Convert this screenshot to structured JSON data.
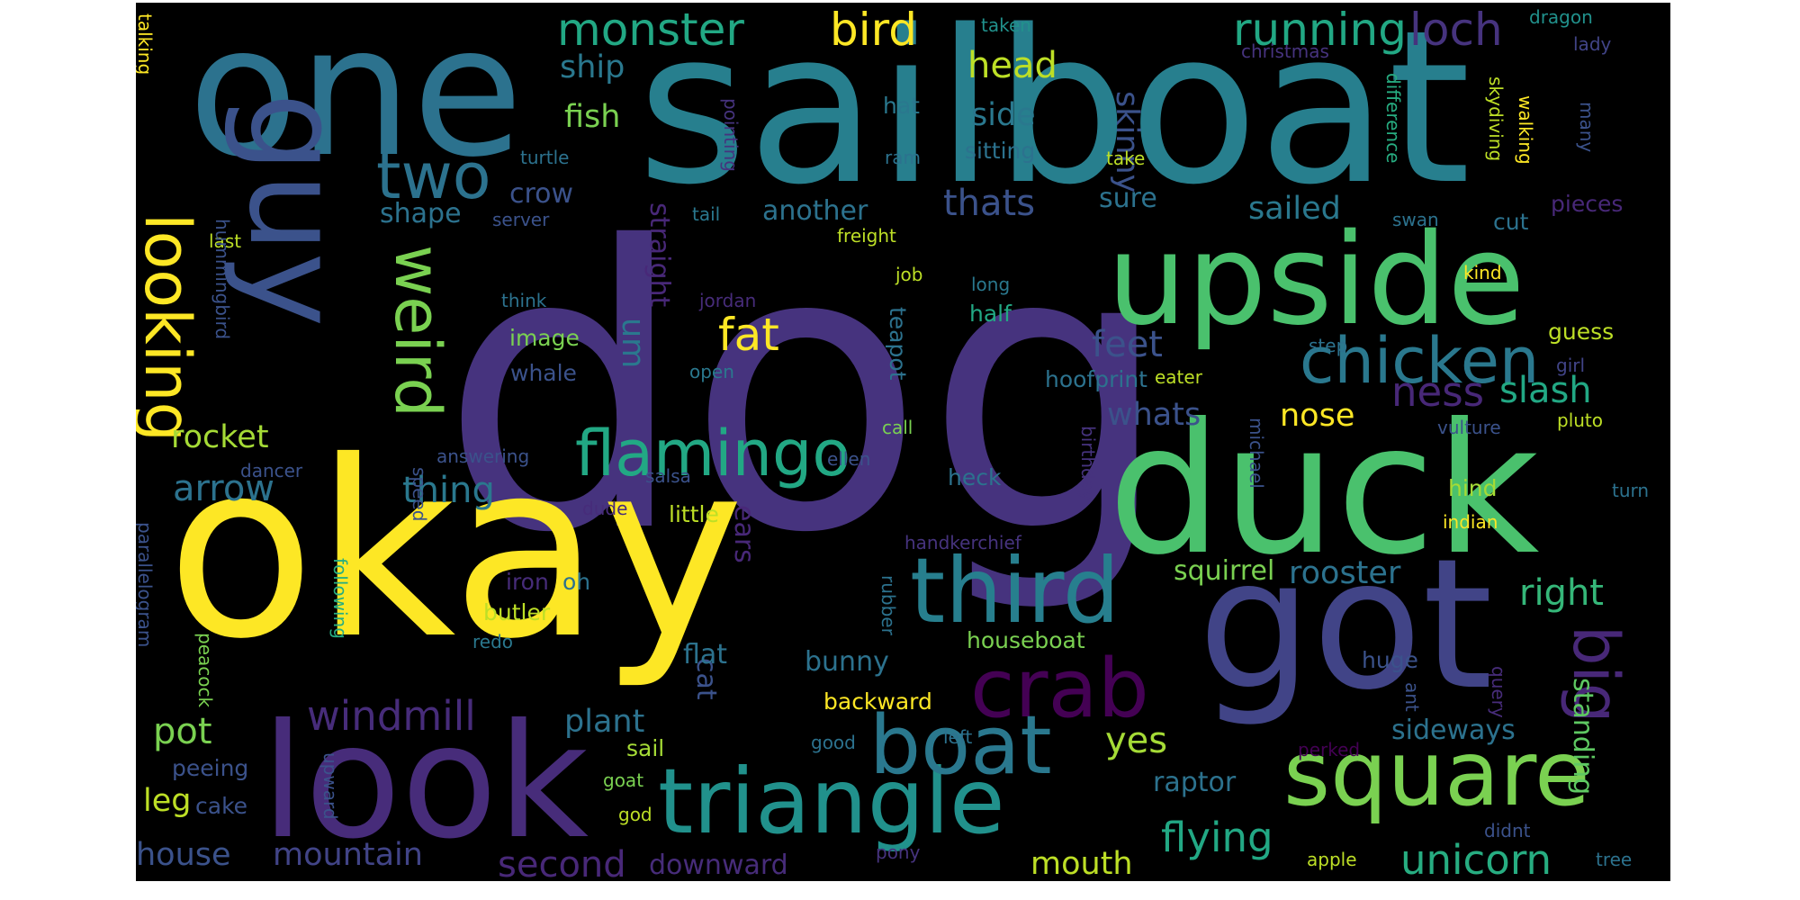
{
  "words": [
    {
      "text": "dog",
      "color": "#46337e"
    },
    {
      "text": "sailboat",
      "color": "#277f8e"
    },
    {
      "text": "okay",
      "color": "#fde725"
    },
    {
      "text": "one",
      "color": "#2c728e"
    },
    {
      "text": "duck",
      "color": "#4ac16d"
    },
    {
      "text": "got",
      "color": "#414487"
    },
    {
      "text": "upside",
      "color": "#4ac16d"
    },
    {
      "text": "look",
      "color": "#472c7a"
    },
    {
      "text": "guy",
      "color": "#3b528b"
    },
    {
      "text": "square",
      "color": "#7ad151"
    },
    {
      "text": "triangle",
      "color": "#21918c"
    },
    {
      "text": "third",
      "color": "#277f8e"
    },
    {
      "text": "crab",
      "color": "#440154"
    },
    {
      "text": "boat",
      "color": "#2a788e"
    },
    {
      "text": "chicken",
      "color": "#2a788e"
    },
    {
      "text": "looking",
      "color": "#fde725"
    },
    {
      "text": "two",
      "color": "#2c728e"
    },
    {
      "text": "weird",
      "color": "#7ad151"
    },
    {
      "text": "flamingo",
      "color": "#22a884"
    },
    {
      "text": "big",
      "color": "#482878"
    },
    {
      "text": "monster",
      "color": "#22a884"
    },
    {
      "text": "bird",
      "color": "#fde725"
    },
    {
      "text": "running",
      "color": "#22a884"
    },
    {
      "text": "loch",
      "color": "#46337e"
    },
    {
      "text": "head",
      "color": "#bddf26"
    },
    {
      "text": "ship",
      "color": "#2a788e"
    },
    {
      "text": "fish",
      "color": "#7ad151"
    },
    {
      "text": "side",
      "color": "#2a788e"
    },
    {
      "text": "skinny",
      "color": "#3b528b"
    },
    {
      "text": "thats",
      "color": "#3b528b"
    },
    {
      "text": "fat",
      "color": "#fde725"
    },
    {
      "text": "windmill",
      "color": "#472c7a"
    },
    {
      "text": "unicorn",
      "color": "#27ad81"
    },
    {
      "text": "flying",
      "color": "#22a884"
    },
    {
      "text": "mouth",
      "color": "#bddf26"
    },
    {
      "text": "second",
      "color": "#482878"
    },
    {
      "text": "house",
      "color": "#3b528b"
    },
    {
      "text": "mountain",
      "color": "#414487"
    },
    {
      "text": "rocket",
      "color": "#a5db36"
    },
    {
      "text": "arrow",
      "color": "#2c728e"
    },
    {
      "text": "thing",
      "color": "#2a788e"
    },
    {
      "text": "sailed",
      "color": "#2a788e"
    },
    {
      "text": "feet",
      "color": "#3b528b"
    },
    {
      "text": "ness",
      "color": "#482878"
    },
    {
      "text": "nose",
      "color": "#fde725"
    },
    {
      "text": "slash",
      "color": "#22a884"
    },
    {
      "text": "whats",
      "color": "#3b528b"
    },
    {
      "text": "sure",
      "color": "#2c728e"
    },
    {
      "text": "shape",
      "color": "#2c728e"
    },
    {
      "text": "another",
      "color": "#2c728e"
    },
    {
      "text": "crow",
      "color": "#3b528b"
    },
    {
      "text": "straight",
      "color": "#482878"
    },
    {
      "text": "um",
      "color": "#2a788e"
    },
    {
      "text": "pot",
      "color": "#7ad151"
    },
    {
      "text": "plant",
      "color": "#2c728e"
    },
    {
      "text": "yes",
      "color": "#a5db36"
    },
    {
      "text": "sideways",
      "color": "#2c728e"
    },
    {
      "text": "raptor",
      "color": "#2c728e"
    },
    {
      "text": "standing",
      "color": "#5ec962"
    },
    {
      "text": "right",
      "color": "#35b779"
    },
    {
      "text": "rooster",
      "color": "#2c728e"
    },
    {
      "text": "squirrel",
      "color": "#7ad151"
    },
    {
      "text": "bunny",
      "color": "#2c728e"
    },
    {
      "text": "cat",
      "color": "#3b528b"
    },
    {
      "text": "ears",
      "color": "#482878"
    },
    {
      "text": "leg",
      "color": "#bddf26"
    },
    {
      "text": "downward",
      "color": "#472c7a"
    },
    {
      "text": "talking",
      "color": "#fde725"
    },
    {
      "text": "dragon",
      "color": "#21918c"
    },
    {
      "text": "christmas",
      "color": "#46337e"
    },
    {
      "text": "lady",
      "color": "#414487"
    },
    {
      "text": "taken",
      "color": "#21918c"
    },
    {
      "text": "skydiving",
      "color": "#bddf26"
    },
    {
      "text": "walking",
      "color": "#fde725"
    },
    {
      "text": "many",
      "color": "#3b528b"
    },
    {
      "text": "difference",
      "color": "#27ad81"
    },
    {
      "text": "pointing",
      "color": "#46337e"
    },
    {
      "text": "hat",
      "color": "#2a788e"
    },
    {
      "text": "ram",
      "color": "#2c728e"
    },
    {
      "text": "sitting",
      "color": "#2c728e"
    },
    {
      "text": "take",
      "color": "#bddf26"
    },
    {
      "text": "turtle",
      "color": "#2c728e"
    },
    {
      "text": "server",
      "color": "#3b528b"
    },
    {
      "text": "tail",
      "color": "#2a788e"
    },
    {
      "text": "last",
      "color": "#bddf26"
    },
    {
      "text": "freight",
      "color": "#bddf26"
    },
    {
      "text": "swan",
      "color": "#2c728e"
    },
    {
      "text": "cut",
      "color": "#2c728e"
    },
    {
      "text": "pieces",
      "color": "#482878"
    },
    {
      "text": "hummingbird",
      "color": "#3b528b"
    },
    {
      "text": "think",
      "color": "#2c728e"
    },
    {
      "text": "jordan",
      "color": "#472c7a"
    },
    {
      "text": "job",
      "color": "#bddf26"
    },
    {
      "text": "long",
      "color": "#2a788e"
    },
    {
      "text": "kind",
      "color": "#fde725"
    },
    {
      "text": "image",
      "color": "#7ad151"
    },
    {
      "text": "half",
      "color": "#22a884"
    },
    {
      "text": "guess",
      "color": "#bddf26"
    },
    {
      "text": "step",
      "color": "#2c728e"
    },
    {
      "text": "girl",
      "color": "#414487"
    },
    {
      "text": "whale",
      "color": "#3b528b"
    },
    {
      "text": "open",
      "color": "#2a788e"
    },
    {
      "text": "teapot",
      "color": "#2c728e"
    },
    {
      "text": "hoofprint",
      "color": "#2c728e"
    },
    {
      "text": "eater",
      "color": "#bddf26"
    },
    {
      "text": "call",
      "color": "#7ad151"
    },
    {
      "text": "vulture",
      "color": "#3b528b"
    },
    {
      "text": "pluto",
      "color": "#bddf26"
    },
    {
      "text": "michael",
      "color": "#3b528b"
    },
    {
      "text": "answering",
      "color": "#3b528b"
    },
    {
      "text": "dancer",
      "color": "#3b528b"
    },
    {
      "text": "salsa",
      "color": "#3b528b"
    },
    {
      "text": "ellen",
      "color": "#3b528b"
    },
    {
      "text": "heck",
      "color": "#2c728e"
    },
    {
      "text": "birthday",
      "color": "#46337e"
    },
    {
      "text": "hind",
      "color": "#a5db36"
    },
    {
      "text": "turn",
      "color": "#2c728e"
    },
    {
      "text": "indian",
      "color": "#fde725"
    },
    {
      "text": "speed",
      "color": "#3b528b"
    },
    {
      "text": "dude",
      "color": "#472c7a"
    },
    {
      "text": "little",
      "color": "#bddf26"
    },
    {
      "text": "handkerchief",
      "color": "#46337e"
    },
    {
      "text": "parallelogram",
      "color": "#3b528b"
    },
    {
      "text": "peacock",
      "color": "#7ad151"
    },
    {
      "text": "iron",
      "color": "#472c7a"
    },
    {
      "text": "oh",
      "color": "#2c728e"
    },
    {
      "text": "following",
      "color": "#27ad81"
    },
    {
      "text": "butler",
      "color": "#bddf26"
    },
    {
      "text": "redo",
      "color": "#2a788e"
    },
    {
      "text": "rubber",
      "color": "#2c728e"
    },
    {
      "text": "houseboat",
      "color": "#7ad151"
    },
    {
      "text": "flat",
      "color": "#2c728e"
    },
    {
      "text": "huge",
      "color": "#3b528b"
    },
    {
      "text": "ant",
      "color": "#3b528b"
    },
    {
      "text": "query",
      "color": "#472c7a"
    },
    {
      "text": "backward",
      "color": "#fde725"
    },
    {
      "text": "good",
      "color": "#2c728e"
    },
    {
      "text": "left",
      "color": "#2c728e"
    },
    {
      "text": "perked",
      "color": "#440154"
    },
    {
      "text": "sail",
      "color": "#a5db36"
    },
    {
      "text": "upward",
      "color": "#3b528b"
    },
    {
      "text": "peeing",
      "color": "#3b528b"
    },
    {
      "text": "cake",
      "color": "#3b528b"
    },
    {
      "text": "goat",
      "color": "#7ad151"
    },
    {
      "text": "god",
      "color": "#bddf26"
    },
    {
      "text": "pony",
      "color": "#46337e"
    },
    {
      "text": "apple",
      "color": "#bddf26"
    },
    {
      "text": "didnt",
      "color": "#3b528b"
    },
    {
      "text": "tree",
      "color": "#2c728e"
    }
  ]
}
